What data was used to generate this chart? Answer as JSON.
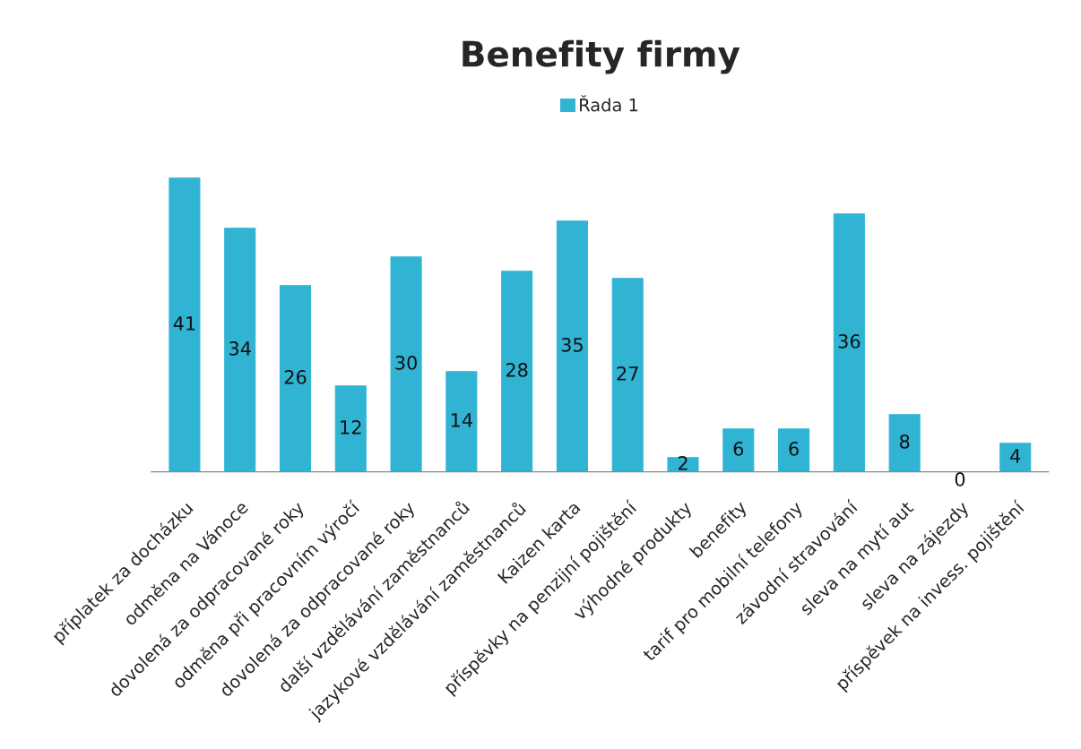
{
  "chart_data": {
    "type": "bar",
    "title": "Benefity firmy",
    "categories": [
      "příplatek za docházku",
      "odměna na Vánoce",
      "dovolená za odpracované roky",
      "odměna při pracovním výročí",
      "dovolená za odpracované roky",
      "další vzdělávání zaměstnanců",
      "jazykové vzdělávání zaměstnanců",
      "Kaizen karta",
      "příspěvky na penzijní pojištění",
      "výhodné produkty",
      "benefity",
      "tarif pro mobilní telefony",
      "závodní stravování",
      "sleva na mytí aut",
      "sleva na zájezdy",
      "příspěvek na invess. pojištění"
    ],
    "series": [
      {
        "name": "Řada 1",
        "color": "#31b4d4",
        "values": [
          41,
          34,
          26,
          12,
          30,
          14,
          28,
          35,
          27,
          2,
          6,
          6,
          36,
          8,
          0,
          4
        ]
      }
    ],
    "data_labels": true,
    "legend": "top",
    "grid": false
  }
}
